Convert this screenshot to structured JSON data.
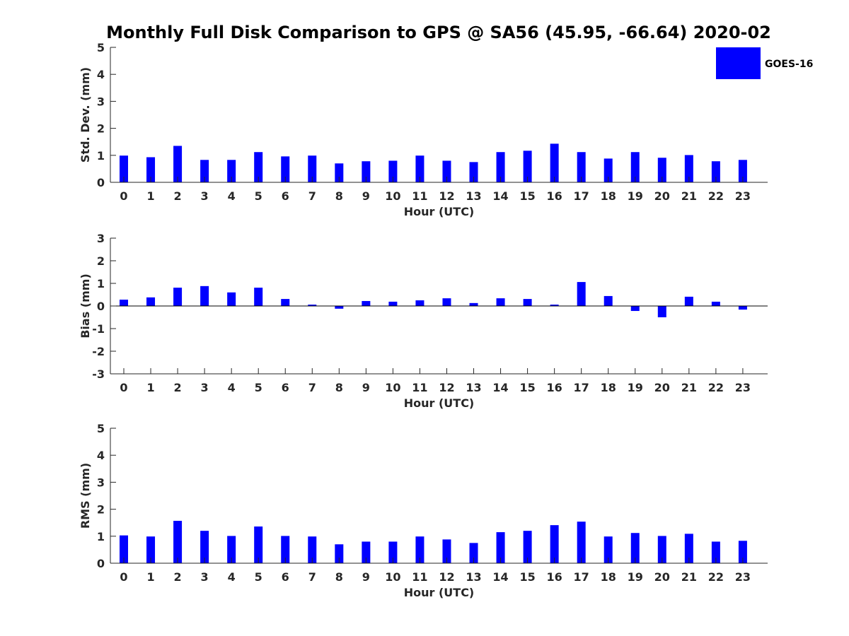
{
  "colors": {
    "bar": "#0000ff",
    "axis": "#262626",
    "text": "#262626"
  },
  "chart_data": {
    "title": "Monthly Full Disk Comparison to GPS @ SA56 (45.95, -66.64) 2020-02",
    "legend": {
      "label": "GOES-16",
      "placement": "top-right"
    },
    "panels": [
      {
        "type": "bar",
        "ylabel": "Std. Dev. (mm)",
        "xlabel": "Hour (UTC)",
        "ylim": [
          0,
          5
        ],
        "yticks": [
          "0",
          "1",
          "2",
          "3",
          "4",
          "5"
        ],
        "categories": [
          "0",
          "1",
          "2",
          "3",
          "4",
          "5",
          "6",
          "7",
          "8",
          "9",
          "10",
          "11",
          "12",
          "13",
          "14",
          "15",
          "16",
          "17",
          "18",
          "19",
          "20",
          "21",
          "22",
          "23"
        ],
        "series": [
          {
            "name": "GOES-16",
            "values": [
              0.99,
              0.93,
              1.35,
              0.83,
              0.83,
              1.12,
              0.96,
              0.99,
              0.7,
              0.78,
              0.8,
              0.99,
              0.8,
              0.75,
              1.12,
              1.17,
              1.43,
              1.12,
              0.88,
              1.12,
              0.91,
              1.01,
              0.78,
              0.83
            ]
          }
        ]
      },
      {
        "type": "bar",
        "ylabel": "Bias (mm)",
        "xlabel": "Hour (UTC)",
        "ylim": [
          -3,
          3
        ],
        "yticks": [
          "-3",
          "-2",
          "-1",
          "0",
          "1",
          "2",
          "3"
        ],
        "categories": [
          "0",
          "1",
          "2",
          "3",
          "4",
          "5",
          "6",
          "7",
          "8",
          "9",
          "10",
          "11",
          "12",
          "13",
          "14",
          "15",
          "16",
          "17",
          "18",
          "19",
          "20",
          "21",
          "22",
          "23"
        ],
        "series": [
          {
            "name": "GOES-16",
            "values": [
              0.28,
              0.38,
              0.81,
              0.88,
              0.6,
              0.81,
              0.31,
              0.06,
              -0.12,
              0.22,
              0.19,
              0.25,
              0.34,
              0.13,
              0.34,
              0.31,
              0.06,
              1.06,
              0.44,
              -0.22,
              -0.5,
              0.41,
              0.19,
              -0.16
            ]
          }
        ]
      },
      {
        "type": "bar",
        "ylabel": "RMS (mm)",
        "xlabel": "Hour (UTC)",
        "ylim": [
          0,
          5
        ],
        "yticks": [
          "0",
          "1",
          "2",
          "3",
          "4",
          "5"
        ],
        "categories": [
          "0",
          "1",
          "2",
          "3",
          "4",
          "5",
          "6",
          "7",
          "8",
          "9",
          "10",
          "11",
          "12",
          "13",
          "14",
          "15",
          "16",
          "17",
          "18",
          "19",
          "20",
          "21",
          "22",
          "23"
        ],
        "series": [
          {
            "name": "GOES-16",
            "values": [
              1.03,
              0.99,
              1.57,
              1.2,
              1.01,
              1.36,
              1.01,
              0.99,
              0.7,
              0.8,
              0.8,
              0.99,
              0.88,
              0.75,
              1.15,
              1.2,
              1.41,
              1.54,
              0.99,
              1.12,
              1.01,
              1.09,
              0.8,
              0.83
            ]
          }
        ]
      }
    ]
  }
}
